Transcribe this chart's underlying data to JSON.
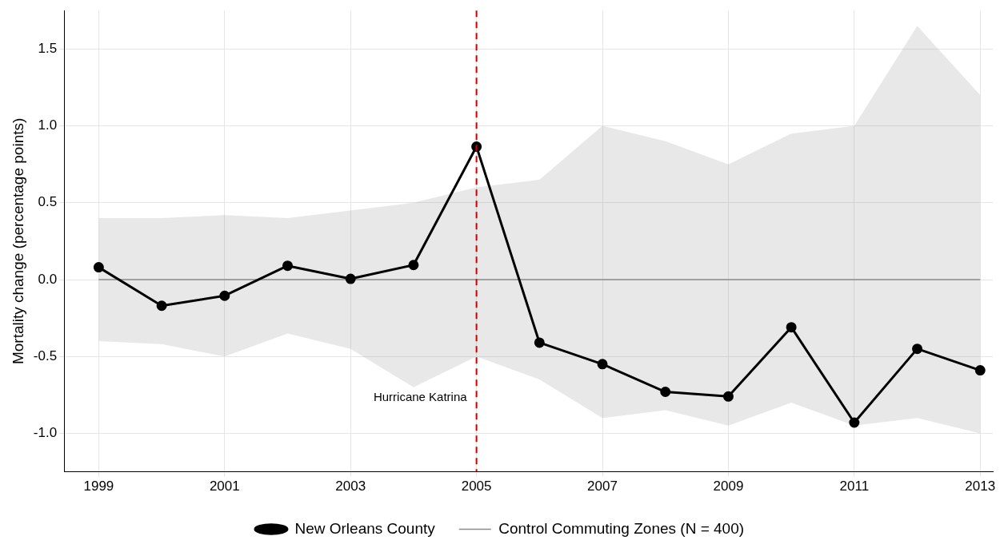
{
  "chart_data": {
    "type": "line",
    "ylabel": "Mortality change (percentage points)",
    "x": [
      1999,
      2000,
      2001,
      2002,
      2003,
      2004,
      2005,
      2006,
      2007,
      2008,
      2009,
      2010,
      2011,
      2012,
      2013
    ],
    "xlim": [
      1998.45,
      2013.2
    ],
    "xticks": [
      1999,
      2001,
      2003,
      2005,
      2007,
      2009,
      2011,
      2013
    ],
    "ylim": [
      -1.25,
      1.75
    ],
    "yticks": [
      {
        "value": -1,
        "label": "-1.0"
      },
      {
        "value": -0.5,
        "label": "-0.5"
      },
      {
        "value": 0,
        "label": "0.0"
      },
      {
        "value": 0.5,
        "label": "0.5"
      },
      {
        "value": 1,
        "label": "1.0"
      },
      {
        "value": 1.5,
        "label": "1.5"
      }
    ],
    "series": [
      {
        "name": "Control Commuting Zones (N = 400)",
        "color": "#8c8c8c",
        "marker": "none",
        "values": [
          0,
          0,
          0,
          0,
          0,
          0,
          0,
          0,
          0,
          0,
          0,
          0,
          0,
          0,
          0
        ],
        "lower": [
          -0.4,
          -0.42,
          -0.5,
          -0.35,
          -0.45,
          -0.7,
          -0.5,
          -0.65,
          -0.9,
          -0.85,
          -0.95,
          -0.8,
          -0.95,
          -0.9,
          -1.0
        ],
        "upper": [
          0.4,
          0.4,
          0.42,
          0.4,
          0.45,
          0.5,
          0.6,
          0.65,
          1.0,
          0.9,
          0.75,
          0.95,
          1.0,
          1.65,
          1.2
        ]
      },
      {
        "name": "New Orleans County",
        "color": "#000000",
        "marker": "circle",
        "values": [
          0.08,
          -0.17,
          -0.105,
          0.09,
          0.005,
          0.095,
          0.865,
          -0.41,
          -0.55,
          -0.73,
          -0.76,
          -0.31,
          -0.93,
          -0.45,
          -0.59
        ]
      }
    ],
    "ref_lines": [
      {
        "axis": "x",
        "value": 2005,
        "label": "Hurricane Katrina",
        "color": "#cc0000",
        "line_style": "dashed"
      }
    ],
    "grid": true,
    "legend": "bottom",
    "line_style": "solid"
  }
}
